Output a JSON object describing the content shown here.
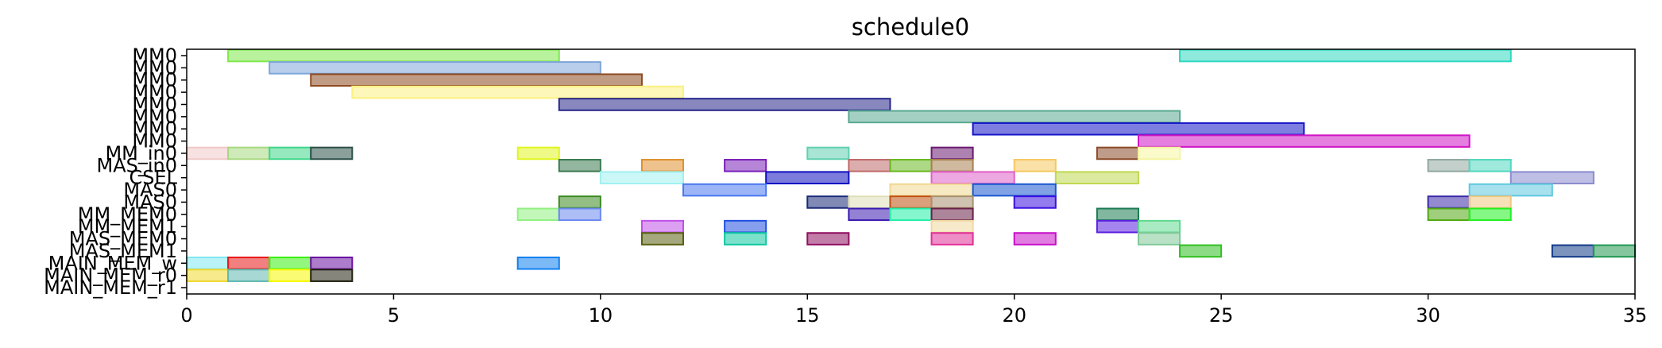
{
  "chart_data": {
    "type": "gantt",
    "title": "schedule0",
    "xlabel": "",
    "ylabel": "",
    "xlim": [
      0,
      35
    ],
    "x_ticks": [
      0,
      5,
      10,
      15,
      20,
      25,
      30,
      35
    ],
    "grid": false,
    "rows": [
      "MM0",
      "MM0",
      "MM0",
      "MM0",
      "MM0",
      "MM0",
      "MM0",
      "MM0",
      "MM_in0",
      "MAS_in0",
      "CSEL",
      "MAS0",
      "MAS0",
      "MM_MEM0",
      "MM_MEM1",
      "MAS_MEM0",
      "MAS_MEM1",
      "MAIN_MEM_w",
      "MAIN_MEM_r0",
      "MAIN_MEM_r1"
    ],
    "tasks": [
      {
        "row": 0,
        "start": 1,
        "end": 9,
        "color": "#7fe84c"
      },
      {
        "row": 0,
        "start": 24,
        "end": 32,
        "color": "#2fd8bf"
      },
      {
        "row": 1,
        "start": 2,
        "end": 10,
        "color": "#7ea6d9"
      },
      {
        "row": 2,
        "start": 3,
        "end": 11,
        "color": "#8e4a20"
      },
      {
        "row": 3,
        "start": 4,
        "end": 12,
        "color": "#fbf17f"
      },
      {
        "row": 4,
        "start": 9,
        "end": 17,
        "color": "#27268a"
      },
      {
        "row": 5,
        "start": 16,
        "end": 24,
        "color": "#5aa991"
      },
      {
        "row": 6,
        "start": 19,
        "end": 27,
        "color": "#1414c8"
      },
      {
        "row": 7,
        "start": 23,
        "end": 31,
        "color": "#d015c6"
      },
      {
        "row": 8,
        "start": 0,
        "end": 1,
        "color": "#f0c8c8"
      },
      {
        "row": 8,
        "start": 1,
        "end": 2,
        "color": "#a8d880"
      },
      {
        "row": 8,
        "start": 2,
        "end": 3,
        "color": "#3fd68a"
      },
      {
        "row": 8,
        "start": 3,
        "end": 4,
        "color": "#2c5048"
      },
      {
        "row": 8,
        "start": 8,
        "end": 9,
        "color": "#e0f520"
      },
      {
        "row": 8,
        "start": 15,
        "end": 16,
        "color": "#60d0b0"
      },
      {
        "row": 8,
        "start": 18,
        "end": 19,
        "color": "#6a1a70"
      },
      {
        "row": 8,
        "start": 22,
        "end": 23,
        "color": "#8a4a28"
      },
      {
        "row": 8,
        "start": 23,
        "end": 24,
        "color": "#f5f5a0"
      },
      {
        "row": 9,
        "start": 9,
        "end": 10,
        "color": "#3a7a50"
      },
      {
        "row": 9,
        "start": 11,
        "end": 12,
        "color": "#e09030"
      },
      {
        "row": 9,
        "start": 13,
        "end": 14,
        "color": "#7a20b8"
      },
      {
        "row": 9,
        "start": 16,
        "end": 17,
        "color": "#c06a6a"
      },
      {
        "row": 9,
        "start": 17,
        "end": 18,
        "color": "#6ab820"
      },
      {
        "row": 9,
        "start": 18,
        "end": 19,
        "color": "#a88050"
      },
      {
        "row": 9,
        "start": 20,
        "end": 21,
        "color": "#f5c860"
      },
      {
        "row": 9,
        "start": 30,
        "end": 31,
        "color": "#90a8a0"
      },
      {
        "row": 9,
        "start": 31,
        "end": 32,
        "color": "#50d8c0"
      },
      {
        "row": 10,
        "start": 10,
        "end": 12,
        "color": "#a0f0f0"
      },
      {
        "row": 10,
        "start": 14,
        "end": 16,
        "color": "#1010c0"
      },
      {
        "row": 10,
        "start": 18,
        "end": 20,
        "color": "#e060c8"
      },
      {
        "row": 10,
        "start": 21,
        "end": 23,
        "color": "#c0d850"
      },
      {
        "row": 10,
        "start": 32,
        "end": 34,
        "color": "#8a8ad0"
      },
      {
        "row": 11,
        "start": 12,
        "end": 14,
        "color": "#4a78f0"
      },
      {
        "row": 11,
        "start": 17,
        "end": 19,
        "color": "#f0d890"
      },
      {
        "row": 11,
        "start": 19,
        "end": 21,
        "color": "#1a58d0"
      },
      {
        "row": 11,
        "start": 31,
        "end": 33,
        "color": "#60c8e0"
      },
      {
        "row": 12,
        "start": 9,
        "end": 10,
        "color": "#3a8a20"
      },
      {
        "row": 12,
        "start": 15,
        "end": 16,
        "color": "#1a2a78"
      },
      {
        "row": 12,
        "start": 16,
        "end": 17,
        "color": "#e0e0b8"
      },
      {
        "row": 12,
        "start": 17,
        "end": 18,
        "color": "#c05010"
      },
      {
        "row": 12,
        "start": 18,
        "end": 19,
        "color": "#a89070"
      },
      {
        "row": 12,
        "start": 20,
        "end": 21,
        "color": "#3a10e0"
      },
      {
        "row": 12,
        "start": 30,
        "end": 31,
        "color": "#3a2aa8"
      },
      {
        "row": 12,
        "start": 31,
        "end": 32,
        "color": "#f0c880"
      },
      {
        "row": 13,
        "start": 8,
        "end": 9,
        "color": "#90f080"
      },
      {
        "row": 13,
        "start": 9,
        "end": 10,
        "color": "#6a88f0"
      },
      {
        "row": 13,
        "start": 16,
        "end": 17,
        "color": "#3a1ab0"
      },
      {
        "row": 13,
        "start": 17,
        "end": 18,
        "color": "#20f0a8"
      },
      {
        "row": 13,
        "start": 18,
        "end": 19,
        "color": "#6a2048"
      },
      {
        "row": 13,
        "start": 22,
        "end": 23,
        "color": "#1a7a50"
      },
      {
        "row": 13,
        "start": 30,
        "end": 31,
        "color": "#50a810"
      },
      {
        "row": 13,
        "start": 31,
        "end": 32,
        "color": "#20f020"
      },
      {
        "row": 14,
        "start": 11,
        "end": 12,
        "color": "#c050e8"
      },
      {
        "row": 14,
        "start": 13,
        "end": 14,
        "color": "#2050e0"
      },
      {
        "row": 14,
        "start": 18,
        "end": 19,
        "color": "#f0d8a0"
      },
      {
        "row": 14,
        "start": 22,
        "end": 23,
        "color": "#5a20e0"
      },
      {
        "row": 14,
        "start": 23,
        "end": 24,
        "color": "#60d890"
      },
      {
        "row": 15,
        "start": 11,
        "end": 12,
        "color": "#5a6010"
      },
      {
        "row": 15,
        "start": 13,
        "end": 14,
        "color": "#10c8a0"
      },
      {
        "row": 15,
        "start": 15,
        "end": 16,
        "color": "#901060"
      },
      {
        "row": 15,
        "start": 18,
        "end": 19,
        "color": "#e03098"
      },
      {
        "row": 15,
        "start": 20,
        "end": 21,
        "color": "#c810c8"
      },
      {
        "row": 15,
        "start": 23,
        "end": 24,
        "color": "#80c898"
      },
      {
        "row": 16,
        "start": 24,
        "end": 25,
        "color": "#30c020"
      },
      {
        "row": 16,
        "start": 33,
        "end": 34,
        "color": "#103a88"
      },
      {
        "row": 16,
        "start": 34,
        "end": 35,
        "color": "#209850"
      },
      {
        "row": 17,
        "start": 0,
        "end": 1,
        "color": "#80e8f0"
      },
      {
        "row": 17,
        "start": 1,
        "end": 2,
        "color": "#e81818"
      },
      {
        "row": 17,
        "start": 2,
        "end": 3,
        "color": "#38f010"
      },
      {
        "row": 17,
        "start": 3,
        "end": 4,
        "color": "#6a10a0"
      },
      {
        "row": 17,
        "start": 8,
        "end": 9,
        "color": "#1080f0"
      },
      {
        "row": 18,
        "start": 0,
        "end": 1,
        "color": "#f0d830"
      },
      {
        "row": 18,
        "start": 1,
        "end": 2,
        "color": "#60b8b0"
      },
      {
        "row": 18,
        "start": 2,
        "end": 3,
        "color": "#f8f800"
      },
      {
        "row": 18,
        "start": 3,
        "end": 4,
        "color": "#202010"
      }
    ]
  }
}
